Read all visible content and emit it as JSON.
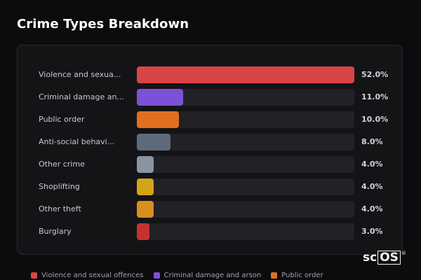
{
  "title": "Crime Types Breakdown",
  "chart_data": {
    "type": "bar",
    "orientation": "horizontal",
    "title": "Crime Types Breakdown",
    "categories": [
      "Violence and sexua...",
      "Criminal damage an...",
      "Public order",
      "Anti-social behavi...",
      "Other crime",
      "Shoplifting",
      "Other theft",
      "Burglary"
    ],
    "values": [
      52.0,
      11.0,
      10.0,
      8.0,
      4.0,
      4.0,
      4.0,
      3.0
    ],
    "value_labels": [
      "52.0%",
      "11.0%",
      "10.0%",
      "8.0%",
      "4.0%",
      "4.0%",
      "4.0%",
      "3.0%"
    ],
    "colors": [
      "#d94545",
      "#7b52d6",
      "#e0701f",
      "#5e6b7c",
      "#8a94a3",
      "#d4a419",
      "#d98e1d",
      "#c8312f"
    ],
    "xlim": [
      0,
      52
    ],
    "grid": false,
    "legend_position": "bottom-left"
  },
  "legend": [
    {
      "label": "Violence and sexual offences",
      "color": "#d94545"
    },
    {
      "label": "Criminal damage and arson",
      "color": "#7b52d6"
    },
    {
      "label": "Public order",
      "color": "#e0701f"
    }
  ],
  "logo": {
    "text_left": "sc",
    "text_box": "OS",
    "mark": "®"
  }
}
